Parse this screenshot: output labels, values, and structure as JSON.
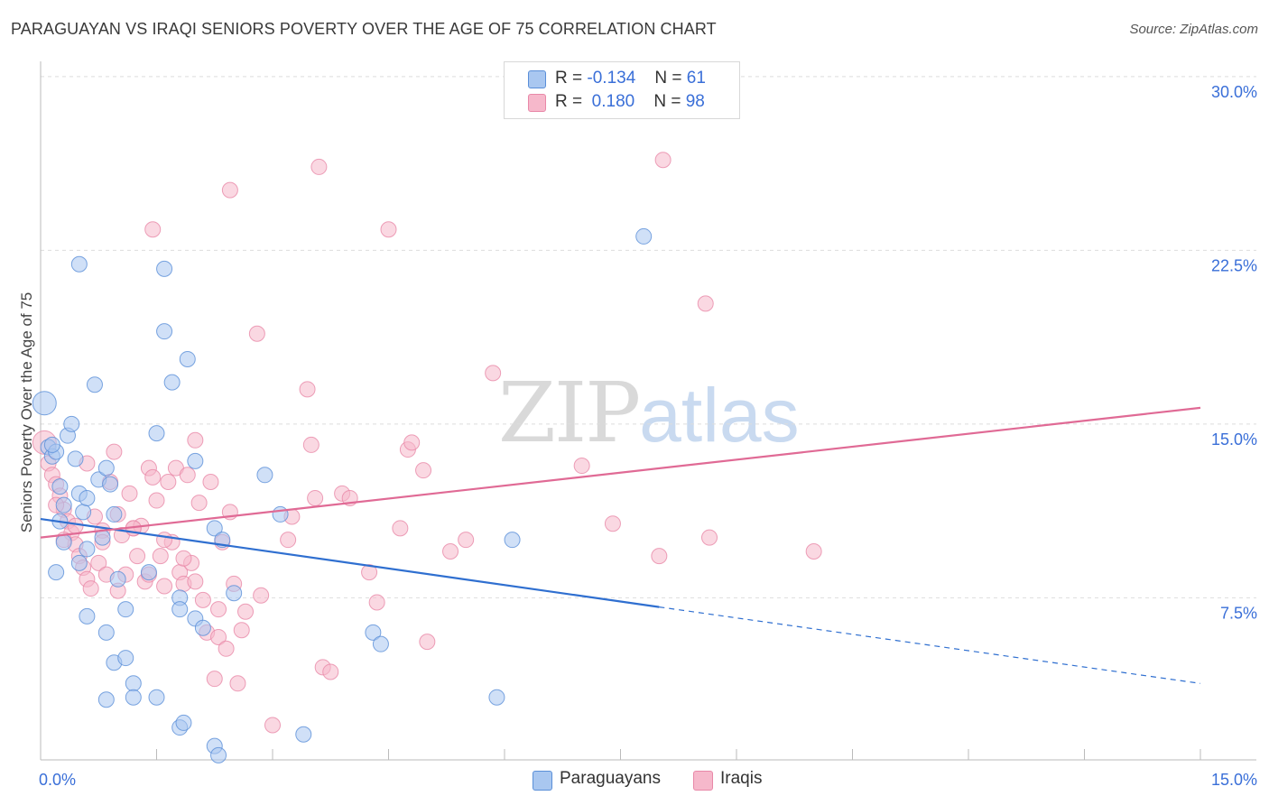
{
  "header": {
    "title": "PARAGUAYAN VS IRAQI SENIORS POVERTY OVER THE AGE OF 75 CORRELATION CHART",
    "source": "Source: ZipAtlas.com"
  },
  "watermark": {
    "part1": "ZIP",
    "part2": "atlas"
  },
  "legend": {
    "rows": [
      {
        "r_label": "R =",
        "r_value": "-0.134",
        "n_label": "N =",
        "n_value": "61",
        "color": "#a9c7f0"
      },
      {
        "r_label": "R =",
        "r_value": "0.180",
        "n_label": "N =",
        "n_value": "98",
        "color": "#f6b8cb"
      }
    ]
  },
  "bottom_legend": {
    "paraguayans": "Paraguayans",
    "iraqis": "Iraqis"
  },
  "colors": {
    "paraguayans_fill": "#a9c7f0",
    "paraguayans_stroke": "#5a8fd8",
    "paraguayans_line": "#2f6fd0",
    "iraqis_fill": "#f6b8cb",
    "iraqis_stroke": "#e888a8",
    "iraqis_line": "#e06a95",
    "tick_label": "#3a6fd8",
    "grid": "#dddddd"
  },
  "chart_data": {
    "type": "scatter",
    "title": "PARAGUAYAN VS IRAQI SENIORS POVERTY OVER THE AGE OF 75 CORRELATION CHART",
    "xlabel": "",
    "ylabel": "Seniors Poverty Over the Age of 75",
    "xlim": [
      0,
      15
    ],
    "ylim": [
      0.5,
      30.5
    ],
    "x_tick_labels": [
      "0.0%",
      "15.0%"
    ],
    "y_ticks": [
      7.5,
      15.0,
      22.5,
      30.0
    ],
    "y_tick_labels": [
      "7.5%",
      "15.0%",
      "22.5%",
      "30.0%"
    ],
    "grid": true,
    "legend_position": "top-center",
    "series": [
      {
        "name": "Paraguayans",
        "trend": {
          "x": [
            0,
            8.0
          ],
          "y": [
            10.9,
            7.1
          ],
          "dashed_to": [
            15.0,
            3.8
          ]
        },
        "points": [
          [
            0.05,
            15.9
          ],
          [
            0.1,
            14.0
          ],
          [
            0.15,
            13.6
          ],
          [
            0.2,
            13.8
          ],
          [
            0.25,
            12.3
          ],
          [
            0.3,
            11.5
          ],
          [
            0.35,
            14.5
          ],
          [
            0.4,
            15.0
          ],
          [
            0.45,
            13.5
          ],
          [
            0.5,
            12.0
          ],
          [
            0.55,
            11.2
          ],
          [
            0.6,
            11.8
          ],
          [
            0.7,
            16.7
          ],
          [
            0.75,
            12.6
          ],
          [
            0.8,
            10.1
          ],
          [
            0.85,
            13.1
          ],
          [
            0.9,
            12.4
          ],
          [
            0.95,
            11.1
          ],
          [
            0.3,
            9.9
          ],
          [
            0.5,
            9.0
          ],
          [
            0.6,
            9.6
          ],
          [
            1.0,
            8.3
          ],
          [
            1.1,
            7.0
          ],
          [
            1.4,
            8.6
          ],
          [
            1.5,
            14.6
          ],
          [
            1.6,
            19.0
          ],
          [
            1.7,
            16.8
          ],
          [
            1.8,
            7.5
          ],
          [
            1.9,
            17.8
          ],
          [
            2.0,
            13.4
          ],
          [
            2.0,
            6.6
          ],
          [
            2.1,
            6.2
          ],
          [
            2.25,
            10.5
          ],
          [
            2.35,
            10.0
          ],
          [
            2.5,
            7.7
          ],
          [
            2.9,
            12.8
          ],
          [
            3.1,
            11.1
          ],
          [
            0.2,
            8.6
          ],
          [
            0.6,
            6.7
          ],
          [
            0.85,
            6.0
          ],
          [
            0.95,
            4.7
          ],
          [
            1.1,
            4.9
          ],
          [
            1.2,
            3.8
          ],
          [
            1.2,
            3.2
          ],
          [
            1.5,
            3.2
          ],
          [
            0.85,
            3.1
          ],
          [
            1.8,
            1.9
          ],
          [
            1.85,
            2.1
          ],
          [
            2.25,
            1.1
          ],
          [
            2.3,
            0.7
          ],
          [
            3.4,
            1.6
          ],
          [
            4.3,
            6.0
          ],
          [
            4.4,
            5.5
          ],
          [
            5.9,
            3.2
          ],
          [
            6.1,
            10.0
          ],
          [
            7.8,
            23.1
          ],
          [
            0.5,
            21.9
          ],
          [
            1.6,
            21.7
          ],
          [
            0.15,
            14.1
          ],
          [
            0.25,
            10.8
          ],
          [
            1.8,
            7.0
          ]
        ]
      },
      {
        "name": "Iraqis",
        "trend": {
          "x": [
            0,
            15.0
          ],
          "y": [
            10.1,
            15.7
          ]
        },
        "points": [
          [
            0.05,
            14.2
          ],
          [
            0.1,
            13.3
          ],
          [
            0.15,
            12.8
          ],
          [
            0.2,
            12.4
          ],
          [
            0.25,
            11.9
          ],
          [
            0.3,
            11.3
          ],
          [
            0.35,
            10.8
          ],
          [
            0.4,
            10.3
          ],
          [
            0.45,
            9.8
          ],
          [
            0.5,
            9.3
          ],
          [
            0.55,
            8.8
          ],
          [
            0.6,
            8.3
          ],
          [
            0.65,
            7.9
          ],
          [
            0.7,
            11.0
          ],
          [
            0.75,
            9.0
          ],
          [
            0.8,
            10.4
          ],
          [
            0.85,
            8.5
          ],
          [
            0.9,
            12.5
          ],
          [
            0.95,
            13.8
          ],
          [
            1.0,
            11.1
          ],
          [
            1.05,
            10.2
          ],
          [
            1.1,
            8.5
          ],
          [
            1.15,
            12.0
          ],
          [
            1.2,
            10.5
          ],
          [
            1.25,
            9.3
          ],
          [
            1.3,
            10.6
          ],
          [
            1.35,
            8.2
          ],
          [
            1.4,
            13.1
          ],
          [
            1.45,
            12.7
          ],
          [
            1.5,
            11.7
          ],
          [
            1.55,
            9.3
          ],
          [
            1.6,
            8.0
          ],
          [
            1.65,
            12.5
          ],
          [
            1.7,
            9.9
          ],
          [
            1.75,
            13.1
          ],
          [
            1.8,
            8.6
          ],
          [
            1.85,
            8.1
          ],
          [
            1.9,
            12.8
          ],
          [
            1.95,
            9.0
          ],
          [
            2.0,
            14.3
          ],
          [
            2.05,
            11.6
          ],
          [
            2.1,
            7.4
          ],
          [
            2.15,
            6.0
          ],
          [
            2.2,
            12.5
          ],
          [
            2.25,
            4.0
          ],
          [
            2.3,
            5.8
          ],
          [
            2.35,
            9.9
          ],
          [
            2.4,
            5.3
          ],
          [
            2.45,
            11.2
          ],
          [
            2.5,
            8.1
          ],
          [
            2.55,
            3.8
          ],
          [
            2.6,
            6.1
          ],
          [
            2.65,
            6.9
          ],
          [
            2.8,
            18.9
          ],
          [
            2.85,
            7.6
          ],
          [
            3.0,
            2.0
          ],
          [
            3.2,
            10.0
          ],
          [
            3.45,
            16.5
          ],
          [
            3.5,
            14.1
          ],
          [
            3.55,
            11.8
          ],
          [
            3.6,
            26.1
          ],
          [
            3.65,
            4.5
          ],
          [
            3.75,
            4.3
          ],
          [
            3.9,
            12.0
          ],
          [
            4.0,
            11.8
          ],
          [
            4.25,
            8.6
          ],
          [
            4.35,
            7.3
          ],
          [
            4.5,
            23.4
          ],
          [
            4.65,
            10.5
          ],
          [
            4.75,
            13.9
          ],
          [
            4.8,
            14.2
          ],
          [
            4.95,
            13.0
          ],
          [
            5.0,
            5.6
          ],
          [
            5.3,
            9.5
          ],
          [
            5.5,
            10.0
          ],
          [
            5.85,
            17.2
          ],
          [
            7.0,
            13.2
          ],
          [
            7.4,
            10.7
          ],
          [
            8.0,
            9.3
          ],
          [
            8.05,
            26.4
          ],
          [
            8.6,
            20.2
          ],
          [
            8.65,
            10.1
          ],
          [
            10.0,
            9.5
          ],
          [
            1.45,
            23.4
          ],
          [
            2.45,
            25.1
          ],
          [
            0.2,
            11.5
          ],
          [
            0.3,
            10.0
          ],
          [
            0.45,
            10.6
          ],
          [
            0.6,
            13.3
          ],
          [
            0.8,
            9.9
          ],
          [
            1.0,
            7.8
          ],
          [
            1.2,
            10.5
          ],
          [
            1.4,
            8.5
          ],
          [
            1.6,
            10.0
          ],
          [
            1.85,
            9.2
          ],
          [
            2.0,
            8.2
          ],
          [
            2.3,
            7.0
          ],
          [
            3.25,
            11.0
          ]
        ]
      }
    ]
  }
}
